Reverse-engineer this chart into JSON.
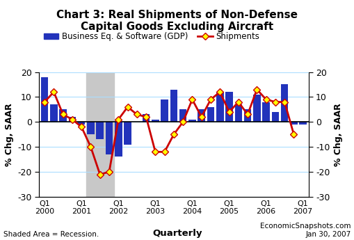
{
  "title": "Chart 3: Real Shipments of Non-Defense\nCapital Goods Excluding Aircraft",
  "ylabel_left": "% Chg, SAAR",
  "ylabel_right": "% Chg, SAAR",
  "ylim": [
    -30,
    20
  ],
  "yticks": [
    -30,
    -20,
    -10,
    0,
    10,
    20
  ],
  "bar_color": "#2233bb",
  "line_color": "#cc0000",
  "marker_color": "#ffff00",
  "marker_edge_color": "#cc0000",
  "background_color": "#ffffff",
  "recession_color": "#c8c8c8",
  "bar_values": [
    18,
    7,
    5,
    2,
    -1,
    -5,
    -7,
    -13,
    -14,
    -9,
    0,
    3,
    1,
    9,
    13,
    5,
    1,
    5,
    6,
    12,
    12,
    7,
    5,
    11,
    8,
    4,
    15,
    -1,
    -1
  ],
  "line_values": [
    8,
    12,
    3,
    1,
    -2,
    -10,
    -21,
    -20,
    1,
    6,
    3,
    2,
    -12,
    -12,
    -5,
    0,
    9,
    2,
    9,
    12,
    4,
    8,
    3,
    13,
    9,
    8,
    8,
    -5,
    null
  ],
  "recession_start": 4.5,
  "recession_end": 7.5,
  "xtick_positions": [
    0,
    4,
    8,
    12,
    16,
    20,
    24,
    28
  ],
  "xtick_labels": [
    "Q1\n2000",
    "Q1\n2001",
    "Q1\n2002",
    "Q1\n2003",
    "Q1\n2004",
    "Q1\n2005",
    "Q1\n2006",
    "Q1\n2007"
  ],
  "footnote_left": "Shaded Area = Recession.",
  "footnote_center": "Quarterly",
  "footnote_right": "EconomicSnapshots.com\nJan 30, 2007"
}
